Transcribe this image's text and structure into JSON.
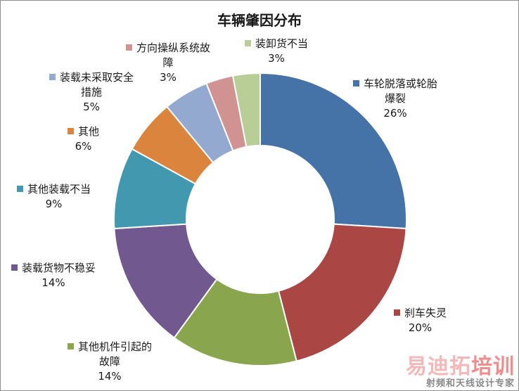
{
  "chart_data": {
    "type": "pie",
    "variant": "donut",
    "title": "车辆肇因分布",
    "legend": "labels-next-to-slices",
    "slices": [
      {
        "name": "车轮脱落或轮胎爆裂",
        "lines": [
          "车轮脱落或轮胎",
          "爆裂"
        ],
        "value": 26,
        "percent": "26%",
        "color": "#4572a7"
      },
      {
        "name": "刹车失灵",
        "lines": [
          "刹车失灵"
        ],
        "value": 20,
        "percent": "20%",
        "color": "#aa4643"
      },
      {
        "name": "其他机件引起的故障",
        "lines": [
          "其他机件引起的",
          "故障"
        ],
        "value": 14,
        "percent": "14%",
        "color": "#89a54e"
      },
      {
        "name": "装载货物不稳妥",
        "lines": [
          "装载货物不稳妥"
        ],
        "value": 14,
        "percent": "14%",
        "color": "#71588f"
      },
      {
        "name": "其他装载不当",
        "lines": [
          "其他装载不当"
        ],
        "value": 9,
        "percent": "9%",
        "color": "#4198af"
      },
      {
        "name": "其他",
        "lines": [
          "其他"
        ],
        "value": 6,
        "percent": "6%",
        "color": "#db843d"
      },
      {
        "name": "装载未采取安全措施",
        "lines": [
          "装载未采取安全",
          "措施"
        ],
        "value": 5,
        "percent": "5%",
        "color": "#93a9cf"
      },
      {
        "name": "方向操纵系统故障",
        "lines": [
          "方向操纵系统故",
          "障"
        ],
        "value": 3,
        "percent": "3%",
        "color": "#d19392"
      },
      {
        "name": "装卸货不当",
        "lines": [
          "装卸货不当"
        ],
        "value": 3,
        "percent": "3%",
        "color": "#b9cd96"
      }
    ]
  },
  "watermark": {
    "brand_part1": "易迪拓",
    "brand_part2": "培训",
    "tagline": "射频和天线设计专家"
  }
}
